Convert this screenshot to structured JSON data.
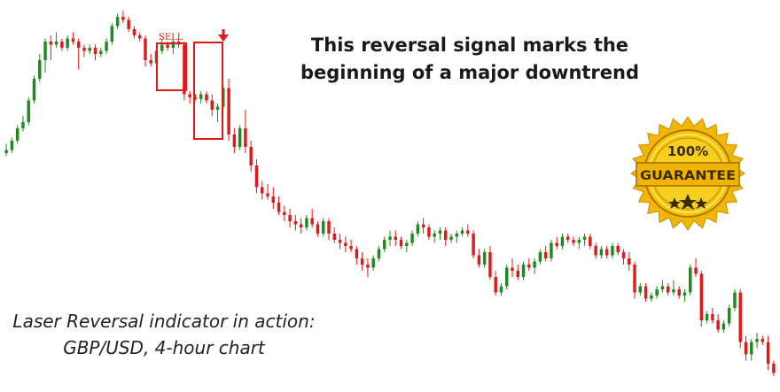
{
  "headline": {
    "line1": "This reversal signal marks the",
    "line2": "beginning of a major downtrend"
  },
  "caption": {
    "line1": "Laser Reversal indicator in action:",
    "line2": "GBP/USD, 4-hour chart"
  },
  "signal": {
    "label": "SELL"
  },
  "badge": {
    "percent": "100%",
    "word": "GUARANTEE"
  },
  "colors": {
    "bull": "#1f8a1f",
    "bear": "#e01a1a",
    "signal": "#e01a1a",
    "badge_gold": "#f2b705"
  },
  "chart_data": {
    "type": "candlestick",
    "symbol": "GBP/USD",
    "timeframe": "4-hour",
    "ohlc": [
      [
        58,
        61,
        57,
        59
      ],
      [
        59,
        63,
        58,
        62
      ],
      [
        62,
        67,
        61,
        66
      ],
      [
        66,
        70,
        65,
        68
      ],
      [
        68,
        76,
        67,
        75
      ],
      [
        75,
        83,
        74,
        82
      ],
      [
        82,
        90,
        81,
        88
      ],
      [
        88,
        95,
        84,
        94
      ],
      [
        94,
        96,
        88,
        93
      ],
      [
        93,
        97,
        92,
        94
      ],
      [
        94,
        95,
        91,
        92
      ],
      [
        92,
        96,
        91,
        95
      ],
      [
        95,
        97,
        93,
        94
      ],
      [
        94,
        95,
        85,
        92
      ],
      [
        92,
        93,
        89,
        91
      ],
      [
        91,
        93,
        90,
        92
      ],
      [
        92,
        93,
        88,
        90
      ],
      [
        90,
        92,
        89,
        91
      ],
      [
        91,
        95,
        90,
        94
      ],
      [
        94,
        100,
        93,
        99
      ],
      [
        99,
        103,
        98,
        102
      ],
      [
        102,
        104,
        100,
        101
      ],
      [
        101,
        102,
        97,
        98
      ],
      [
        98,
        99,
        95,
        96
      ],
      [
        96,
        97,
        94,
        95
      ],
      [
        95,
        96,
        86,
        88
      ],
      [
        88,
        90,
        86,
        87
      ],
      [
        87,
        92,
        86,
        91
      ],
      [
        91,
        95,
        90,
        93
      ],
      [
        93,
        94,
        91,
        92
      ],
      [
        92,
        95,
        90,
        94
      ],
      [
        94,
        95,
        92,
        93
      ],
      [
        93,
        94,
        75,
        77
      ],
      [
        77,
        78,
        74,
        76
      ],
      [
        76,
        77,
        75,
        75.5
      ],
      [
        75.5,
        78,
        74,
        77
      ],
      [
        77,
        78,
        74,
        75
      ],
      [
        75,
        77,
        70,
        72
      ],
      [
        72,
        74,
        68,
        73
      ],
      [
        73,
        80,
        72,
        79
      ],
      [
        79,
        82,
        62,
        64
      ],
      [
        64,
        66,
        58,
        60
      ],
      [
        60,
        67,
        59,
        66
      ],
      [
        66,
        72,
        58,
        60
      ],
      [
        60,
        62,
        52,
        54
      ],
      [
        54,
        56,
        45,
        47
      ],
      [
        47,
        49,
        43,
        45
      ],
      [
        45,
        48,
        43,
        44
      ],
      [
        44,
        47,
        40,
        42
      ],
      [
        42,
        44,
        38,
        39
      ],
      [
        39,
        41,
        36,
        38
      ],
      [
        38,
        40,
        34,
        36
      ],
      [
        36,
        38,
        33,
        35
      ],
      [
        35,
        37,
        32,
        34
      ],
      [
        34,
        38,
        33,
        37
      ],
      [
        37,
        40,
        34,
        35
      ],
      [
        35,
        36,
        31,
        32
      ],
      [
        32,
        37,
        31,
        36
      ],
      [
        36,
        37,
        30,
        32
      ],
      [
        32,
        34,
        29,
        30
      ],
      [
        30,
        32,
        27,
        29
      ],
      [
        29,
        31,
        26,
        28
      ],
      [
        28,
        30,
        26,
        27
      ],
      [
        27,
        28,
        22,
        24
      ],
      [
        24,
        26,
        20,
        22
      ],
      [
        22,
        24,
        18,
        21
      ],
      [
        21,
        25,
        20,
        24
      ],
      [
        24,
        28,
        23,
        27
      ],
      [
        27,
        31,
        26,
        30
      ],
      [
        30,
        33,
        28,
        31
      ],
      [
        31,
        33,
        28,
        30
      ],
      [
        30,
        31,
        27,
        28
      ],
      [
        28,
        30,
        26,
        29
      ],
      [
        29,
        33,
        28,
        32
      ],
      [
        32,
        36,
        31,
        35
      ],
      [
        35,
        37,
        32,
        34
      ],
      [
        34,
        35,
        30,
        31
      ],
      [
        31,
        33,
        29,
        32
      ],
      [
        32,
        34,
        30,
        33
      ],
      [
        33,
        34,
        28,
        30
      ],
      [
        30,
        32,
        29,
        31
      ],
      [
        31,
        33,
        29,
        32
      ],
      [
        32,
        34,
        31,
        33
      ],
      [
        33,
        35,
        31,
        32
      ],
      [
        32,
        33,
        24,
        25
      ],
      [
        25,
        27,
        21,
        22
      ],
      [
        22,
        27,
        21,
        26
      ],
      [
        26,
        28,
        17,
        18
      ],
      [
        18,
        20,
        12,
        13
      ],
      [
        13,
        16,
        12,
        15
      ],
      [
        15,
        22,
        14,
        21
      ],
      [
        21,
        24,
        18,
        20
      ],
      [
        20,
        22,
        17,
        18
      ],
      [
        18,
        23,
        17,
        22
      ],
      [
        22,
        24,
        20,
        21
      ],
      [
        21,
        24,
        19,
        23
      ],
      [
        23,
        27,
        22,
        26
      ],
      [
        26,
        28,
        23,
        24
      ],
      [
        24,
        30,
        23,
        29
      ],
      [
        29,
        31,
        27,
        28
      ],
      [
        28,
        32,
        27,
        31
      ],
      [
        31,
        32,
        29,
        30
      ],
      [
        30,
        31,
        28,
        29
      ],
      [
        29,
        31,
        27,
        30
      ],
      [
        30,
        32,
        28,
        31
      ],
      [
        31,
        32,
        27,
        28
      ],
      [
        28,
        29,
        24,
        25
      ],
      [
        25,
        28,
        24,
        27
      ],
      [
        27,
        28,
        24,
        25
      ],
      [
        25,
        29,
        24,
        28
      ],
      [
        28,
        29,
        25,
        26
      ],
      [
        26,
        27,
        22,
        24
      ],
      [
        24,
        26,
        20,
        22
      ],
      [
        22,
        23,
        11,
        13
      ],
      [
        13,
        16,
        12,
        15
      ],
      [
        15,
        16,
        10,
        11
      ],
      [
        11,
        13,
        10,
        12
      ],
      [
        12,
        15,
        11,
        14
      ],
      [
        14,
        17,
        13,
        15
      ],
      [
        15,
        16,
        12,
        13
      ],
      [
        13,
        17,
        12,
        14
      ],
      [
        14,
        15,
        11,
        12
      ],
      [
        12,
        14,
        10,
        13
      ],
      [
        13,
        22,
        12,
        21
      ],
      [
        21,
        24,
        18,
        19
      ],
      [
        19,
        20,
        2,
        4
      ],
      [
        4,
        7,
        3,
        6
      ],
      [
        6,
        8,
        3,
        4
      ],
      [
        4,
        6,
        0,
        1
      ],
      [
        1,
        4,
        0,
        3
      ],
      [
        3,
        9,
        2,
        8
      ],
      [
        8,
        14,
        7,
        13
      ],
      [
        13,
        14,
        -5,
        -3
      ],
      [
        -3,
        -1,
        -9,
        -7
      ],
      [
        -7,
        -2,
        -9,
        -3
      ],
      [
        -3,
        0,
        -5,
        -2
      ],
      [
        -2,
        -1,
        -4,
        -3
      ],
      [
        -3,
        -1,
        -12,
        -10
      ],
      [
        -10,
        -9,
        -14,
        -13
      ]
    ],
    "ylim": [
      -16,
      104
    ],
    "signal_index": 32
  }
}
